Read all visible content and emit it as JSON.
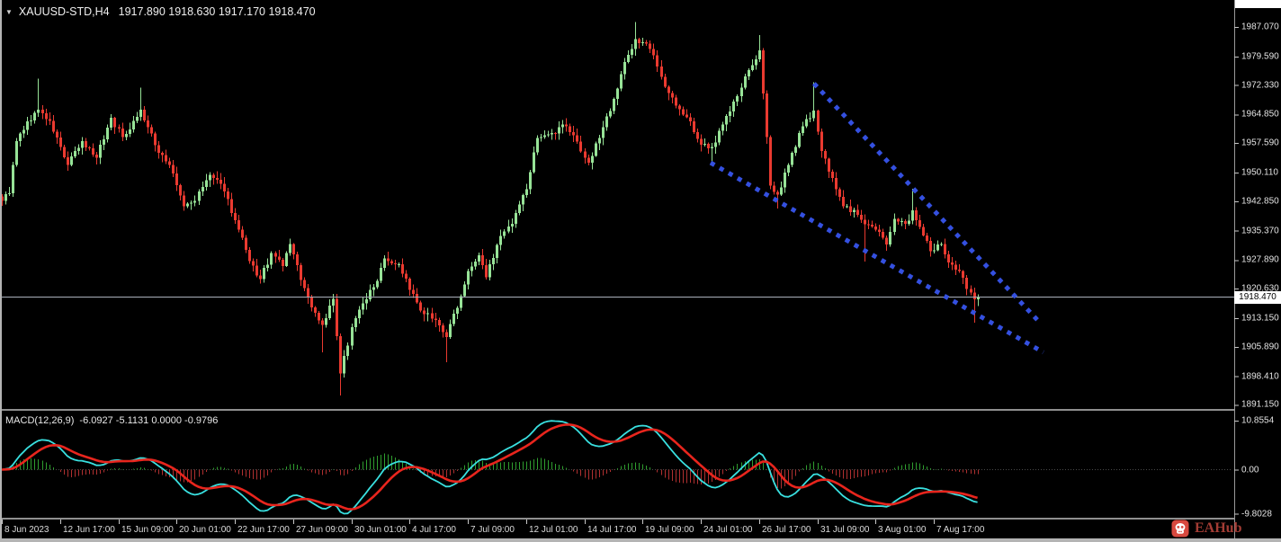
{
  "header": {
    "dropdown_icon": "▼",
    "symbol": "XAUUSD-STD,H4",
    "ohlc": "1917.890 1918.630 1917.170 1918.470"
  },
  "macd_panel": {
    "label": "MACD(12,26,9)",
    "values_text": "-6.0927 -5.1131 0.0000 -0.9796"
  },
  "current_price": {
    "value": "1918.470",
    "price": 1918.47
  },
  "logo": {
    "text": "EAHub"
  },
  "time_axis": {
    "bars_per_label": 16,
    "labels": [
      "8 Jun 2023",
      "12 Jun 17:00",
      "15 Jun 09:00",
      "20 Jun 01:00",
      "22 Jun 17:00",
      "27 Jun 09:00",
      "30 Jun 01:00",
      "4 Jul 17:00",
      "7 Jul 09:00",
      "12 Jul 01:00",
      "14 Jul 17:00",
      "19 Jul 09:00",
      "24 Jul 01:00",
      "26 Jul 17:00",
      "31 Jul 09:00",
      "3 Aug 01:00",
      "7 Aug 17:00"
    ]
  },
  "chart_data": [
    {
      "type": "candlestick",
      "title": "XAUUSD-STD,H4",
      "timeframe": "H4",
      "bars_visible": 269,
      "ylim": [
        1889.0,
        1992.5
      ],
      "y_ticks": [
        1987.07,
        1979.59,
        1972.33,
        1964.85,
        1957.59,
        1950.11,
        1942.85,
        1935.37,
        1927.89,
        1920.63,
        1913.15,
        1905.89,
        1898.41,
        1891.15
      ],
      "grid": false,
      "last_ohlc": {
        "open": 1917.89,
        "high": 1918.63,
        "low": 1917.17,
        "close": 1918.47
      },
      "current_price": 1918.47,
      "price_waypoints": [
        [
          0,
          1943
        ],
        [
          2,
          1945
        ],
        [
          4,
          1958
        ],
        [
          7,
          1963
        ],
        [
          10,
          1966
        ],
        [
          13,
          1963
        ],
        [
          18,
          1952
        ],
        [
          22,
          1958
        ],
        [
          26,
          1954
        ],
        [
          30,
          1964
        ],
        [
          33,
          1959
        ],
        [
          38,
          1966
        ],
        [
          42,
          1957
        ],
        [
          46,
          1952
        ],
        [
          50,
          1941.5
        ],
        [
          53,
          1943
        ],
        [
          57,
          1949.5
        ],
        [
          61,
          1945.5
        ],
        [
          64,
          1938
        ],
        [
          68,
          1927.5
        ],
        [
          71,
          1923
        ],
        [
          74,
          1929.5
        ],
        [
          77,
          1926.5
        ],
        [
          79,
          1932
        ],
        [
          82,
          1923
        ],
        [
          85,
          1916
        ],
        [
          88,
          1911.5
        ],
        [
          91,
          1918
        ],
        [
          93,
          1899
        ],
        [
          96,
          1911
        ],
        [
          99,
          1917
        ],
        [
          102,
          1921
        ],
        [
          105,
          1928.5
        ],
        [
          109,
          1927
        ],
        [
          112,
          1920.5
        ],
        [
          115,
          1915
        ],
        [
          118,
          1913
        ],
        [
          122,
          1908.5
        ],
        [
          125,
          1916
        ],
        [
          128,
          1925
        ],
        [
          131,
          1929
        ],
        [
          133,
          1923.5
        ],
        [
          136,
          1932
        ],
        [
          140,
          1937
        ],
        [
          144,
          1946
        ],
        [
          147,
          1959
        ],
        [
          151,
          1960
        ],
        [
          154,
          1962.5
        ],
        [
          157,
          1959.5
        ],
        [
          161,
          1952.5
        ],
        [
          164,
          1959
        ],
        [
          168,
          1969
        ],
        [
          171,
          1978
        ],
        [
          174,
          1984
        ],
        [
          178,
          1981.5
        ],
        [
          181,
          1974.5
        ],
        [
          185,
          1967
        ],
        [
          189,
          1963
        ],
        [
          192,
          1957
        ],
        [
          195,
          1956.5
        ],
        [
          198,
          1962.5
        ],
        [
          202,
          1969.5
        ],
        [
          205,
          1976
        ],
        [
          208,
          1981
        ],
        [
          211,
          1947
        ],
        [
          213,
          1944.5
        ],
        [
          216,
          1952
        ],
        [
          219,
          1960
        ],
        [
          223,
          1966
        ],
        [
          225,
          1955.5
        ],
        [
          228,
          1948.5
        ],
        [
          231,
          1941.5
        ],
        [
          234,
          1940.5
        ],
        [
          237,
          1937
        ],
        [
          240,
          1935.5
        ],
        [
          243,
          1932
        ],
        [
          245,
          1938.5
        ],
        [
          248,
          1937
        ],
        [
          250,
          1940.5
        ],
        [
          253,
          1934
        ],
        [
          255,
          1930
        ],
        [
          258,
          1932
        ],
        [
          260,
          1927.5
        ],
        [
          263,
          1925
        ],
        [
          265,
          1920.5
        ],
        [
          267,
          1917.9
        ],
        [
          268,
          1918.47
        ]
      ],
      "spikes": [
        {
          "bar": 10,
          "kind": "high",
          "price": 1974.0
        },
        {
          "bar": 38,
          "kind": "high",
          "price": 1971.7
        },
        {
          "bar": 88,
          "kind": "low",
          "price": 1904.5
        },
        {
          "bar": 93,
          "kind": "low",
          "price": 1893.5
        },
        {
          "bar": 122,
          "kind": "low",
          "price": 1902.0
        },
        {
          "bar": 174,
          "kind": "high",
          "price": 1988.3
        },
        {
          "bar": 195,
          "kind": "low",
          "price": 1951.8
        },
        {
          "bar": 208,
          "kind": "high",
          "price": 1985.0
        },
        {
          "bar": 213,
          "kind": "low",
          "price": 1941.0
        },
        {
          "bar": 223,
          "kind": "high",
          "price": 1973.0
        },
        {
          "bar": 237,
          "kind": "low",
          "price": 1927.5
        },
        {
          "bar": 250,
          "kind": "high",
          "price": 1946.0
        },
        {
          "bar": 267,
          "kind": "low",
          "price": 1912.0
        }
      ],
      "trendlines": [
        {
          "name": "upper-channel",
          "from_bar": 223.1,
          "from_price": 1972.7,
          "to_bar": 285.4,
          "to_price": 1911.8
        },
        {
          "name": "lower-channel",
          "from_bar": 194.7,
          "from_price": 1952.6,
          "to_bar": 286.1,
          "to_price": 1904.5
        }
      ]
    },
    {
      "type": "macd",
      "params": [
        12,
        26,
        9
      ],
      "current": {
        "macd": -6.0927,
        "signal": -5.1131,
        "osma": 0.0,
        "histogram": -0.9796
      },
      "ylim": [
        -9.8028,
        10.8554
      ],
      "y_ticks_text": [
        "10.8554",
        "0.00",
        "-9.8028"
      ],
      "y_ticks": [
        10.8554,
        0,
        -9.8028
      ]
    }
  ],
  "colors": {
    "background": "#000000",
    "bull": "#97e397",
    "bear": "#ea3a30",
    "trendline": "#3450e0",
    "macd_line": "#39e0e0",
    "signal_line": "#e8251d",
    "hist_up": "#2f9e2f",
    "hist_down": "#b03030",
    "price_line": "#aab0ba",
    "axis_text": "#e4e4e4",
    "tick": "#c8c8c8",
    "tag_bg": "#ffffff",
    "tag_text": "#000000",
    "logo_bg": "#d8493f",
    "logo_text": "#a33c34"
  }
}
